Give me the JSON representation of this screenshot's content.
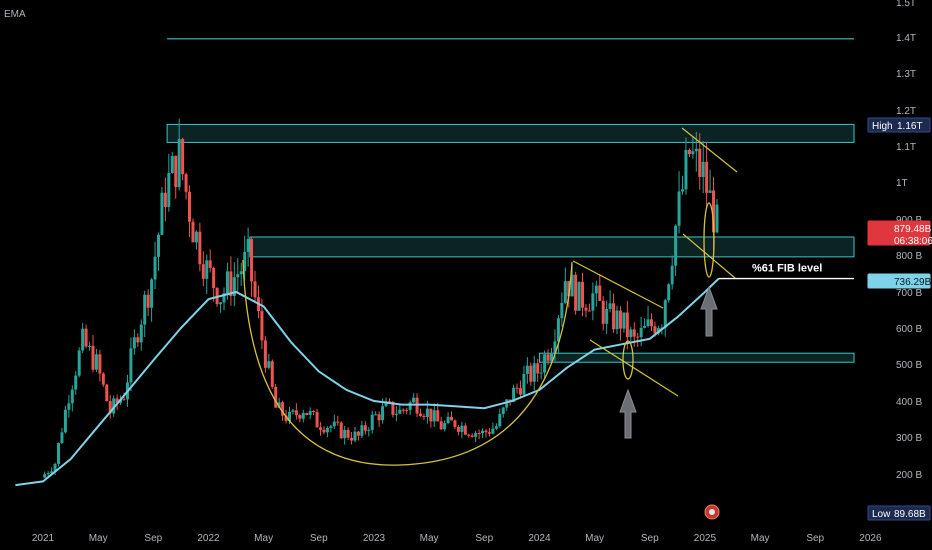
{
  "indicator_label": "EMA",
  "colors": {
    "up": "#26a69a",
    "down": "#ef5350",
    "ema": "#7fd3e8",
    "zone": "#40c4c4",
    "trend": "#d4c23b",
    "background": "#000000"
  },
  "chart_data": {
    "type": "candlestick",
    "x_ticks": [
      "2021",
      "May",
      "Sep",
      "2022",
      "May",
      "Sep",
      "2023",
      "May",
      "Sep",
      "2024",
      "May",
      "Sep",
      "2025",
      "May",
      "Sep",
      "2026"
    ],
    "y_ticks": [
      "200 B",
      "300 B",
      "400 B",
      "500 B",
      "600 B",
      "700 B",
      "800 B",
      "900 B",
      "1T",
      "1.1T",
      "1.2T",
      "1.3T",
      "1.4T",
      "1.5T"
    ],
    "ylim": [
      170,
      1500
    ],
    "series": [
      {
        "name": "",
        "description_points": [
          [
            "2021-01",
            190
          ],
          [
            "2021-02",
            230
          ],
          [
            "2021-03",
            420
          ],
          [
            "2021-04",
            560
          ],
          [
            "2021-05",
            500
          ],
          [
            "2021-06",
            370
          ],
          [
            "2021-07",
            420
          ],
          [
            "2021-08",
            600
          ],
          [
            "2021-09",
            740
          ],
          [
            "2021-10",
            980
          ],
          [
            "2021-11",
            1070
          ],
          [
            "2021-12",
            880
          ],
          [
            "2022-01",
            760
          ],
          [
            "2022-02",
            690
          ],
          [
            "2022-03",
            740
          ],
          [
            "2022-04",
            790
          ],
          [
            "2022-05",
            570
          ],
          [
            "2022-06",
            380
          ],
          [
            "2022-07",
            350
          ],
          [
            "2022-08",
            380
          ],
          [
            "2022-09",
            340
          ],
          [
            "2022-10",
            330
          ],
          [
            "2022-11",
            310
          ],
          [
            "2022-12",
            300
          ],
          [
            "2023-01",
            350
          ],
          [
            "2023-02",
            380
          ],
          [
            "2023-03",
            370
          ],
          [
            "2023-04",
            400
          ],
          [
            "2023-05",
            370
          ],
          [
            "2023-06",
            330
          ],
          [
            "2023-07",
            340
          ],
          [
            "2023-08",
            320
          ],
          [
            "2023-09",
            310
          ],
          [
            "2023-10",
            330
          ],
          [
            "2023-11",
            410
          ],
          [
            "2023-12",
            460
          ],
          [
            "2024-01",
            480
          ],
          [
            "2024-02",
            560
          ],
          [
            "2024-03",
            740
          ],
          [
            "2024-04",
            680
          ],
          [
            "2024-05",
            690
          ],
          [
            "2024-06",
            630
          ],
          [
            "2024-07",
            620
          ],
          [
            "2024-08",
            560
          ],
          [
            "2024-09",
            600
          ],
          [
            "2024-10",
            630
          ],
          [
            "2024-11",
            880
          ],
          [
            "2024-12",
            1080
          ],
          [
            "2025-01",
            1020
          ],
          [
            "2025-02",
            879.48
          ]
        ]
      },
      {
        "name": "EMA",
        "points": [
          [
            "2020-11",
            170
          ],
          [
            "2021-01",
            180
          ],
          [
            "2021-03",
            240
          ],
          [
            "2021-05",
            330
          ],
          [
            "2021-07",
            420
          ],
          [
            "2021-09",
            510
          ],
          [
            "2021-11",
            600
          ],
          [
            "2022-01",
            680
          ],
          [
            "2022-03",
            700
          ],
          [
            "2022-05",
            660
          ],
          [
            "2022-07",
            560
          ],
          [
            "2022-09",
            480
          ],
          [
            "2022-11",
            430
          ],
          [
            "2023-01",
            400
          ],
          [
            "2023-03",
            390
          ],
          [
            "2023-05",
            390
          ],
          [
            "2023-07",
            385
          ],
          [
            "2023-09",
            380
          ],
          [
            "2023-11",
            400
          ],
          [
            "2024-01",
            430
          ],
          [
            "2024-03",
            490
          ],
          [
            "2024-05",
            540
          ],
          [
            "2024-07",
            555
          ],
          [
            "2024-09",
            570
          ],
          [
            "2024-11",
            630
          ],
          [
            "2025-01",
            700
          ],
          [
            "2025-02",
            736.29
          ]
        ]
      }
    ],
    "zones": [
      {
        "low": 1110,
        "high": 1160,
        "from": "2021-10",
        "to": "2026-02"
      },
      {
        "low": 795,
        "high": 850,
        "from": "2022-04",
        "to": "2026-02"
      },
      {
        "low": 505,
        "high": 530,
        "from": "2024-01",
        "to": "2026-02"
      }
    ],
    "horizontal_line": {
      "value": 1395,
      "from": "2021-10",
      "to": "2026-02"
    },
    "fib_level": {
      "value": 736.29,
      "label": "%61 FIB level",
      "from": "2025-02",
      "to": "2025-11"
    },
    "labels": {
      "high_tag": "High",
      "high_value": "1.16T",
      "last_price": "879.48B",
      "countdown": "06:38:06",
      "ema_value": "736.29B",
      "low_tag": "Low",
      "low_value": "89.68B"
    }
  }
}
